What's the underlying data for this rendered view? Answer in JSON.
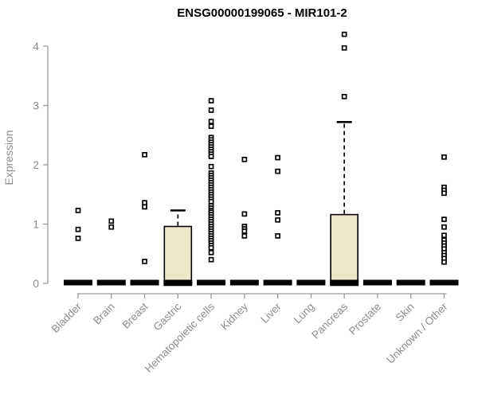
{
  "chart_data": {
    "type": "boxplot",
    "title": "ENSG00000199065 - MIR101-2",
    "ylabel": "Expression",
    "yticks": [
      0,
      1,
      2,
      3,
      4
    ],
    "ylim": [
      0,
      4.3
    ],
    "grid": false,
    "legend": "none",
    "categories": [
      "Bladder",
      "Brain",
      "Breast",
      "Gastric",
      "Hematopoietic cells",
      "Kidney",
      "Liver",
      "Lung",
      "Pancreas",
      "Prostate",
      "Skin",
      "Unknown / Other"
    ],
    "series": [
      {
        "category": "Bladder",
        "median": 0,
        "q1": 0,
        "q3": 0,
        "whisker_low": 0,
        "whisker_high": 0,
        "outliers": [
          1.23,
          0.91,
          0.76
        ]
      },
      {
        "category": "Brain",
        "median": 0,
        "q1": 0,
        "q3": 0,
        "whisker_low": 0,
        "whisker_high": 0,
        "outliers": [
          1.05,
          0.95
        ]
      },
      {
        "category": "Breast",
        "median": 0,
        "q1": 0,
        "q3": 0,
        "whisker_low": 0,
        "whisker_high": 0,
        "outliers": [
          2.17,
          1.36,
          1.29,
          0.37
        ]
      },
      {
        "category": "Gastric",
        "median": 0,
        "q1": 0,
        "q3": 0.96,
        "whisker_low": 0,
        "whisker_high": 1.23,
        "outliers": []
      },
      {
        "category": "Hematopoietic cells",
        "median": 0,
        "q1": 0,
        "q3": 0,
        "whisker_low": 0,
        "whisker_high": 0,
        "outliers": [
          3.08,
          2.92,
          2.73,
          2.65,
          2.46,
          2.42,
          2.38,
          2.34,
          2.3,
          2.26,
          2.22,
          2.18,
          2.14,
          1.97,
          1.86,
          1.82,
          1.78,
          1.74,
          1.7,
          1.66,
          1.62,
          1.58,
          1.54,
          1.5,
          1.46,
          1.42,
          1.38,
          1.31,
          1.27,
          1.23,
          1.2,
          1.16,
          1.12,
          1.08,
          1.04,
          1.0,
          0.96,
          0.92,
          0.88,
          0.84,
          0.8,
          0.76,
          0.72,
          0.68,
          0.64,
          0.6,
          0.52,
          0.4
        ]
      },
      {
        "category": "Kidney",
        "median": 0,
        "q1": 0,
        "q3": 0,
        "whisker_low": 0,
        "whisker_high": 0,
        "outliers": [
          2.09,
          1.17,
          0.96,
          0.92,
          0.88,
          0.8
        ]
      },
      {
        "category": "Liver",
        "median": 0,
        "q1": 0,
        "q3": 0,
        "whisker_low": 0,
        "whisker_high": 0,
        "outliers": [
          2.12,
          1.89,
          1.19,
          1.07,
          0.8
        ]
      },
      {
        "category": "Lung",
        "median": 0,
        "q1": 0,
        "q3": 0,
        "whisker_low": 0,
        "whisker_high": 0,
        "outliers": []
      },
      {
        "category": "Pancreas",
        "median": 0,
        "q1": 0,
        "q3": 1.16,
        "whisker_low": 0,
        "whisker_high": 2.72,
        "outliers": [
          4.2,
          3.97,
          3.15
        ]
      },
      {
        "category": "Prostate",
        "median": 0,
        "q1": 0,
        "q3": 0,
        "whisker_low": 0,
        "whisker_high": 0,
        "outliers": []
      },
      {
        "category": "Skin",
        "median": 0,
        "q1": 0,
        "q3": 0,
        "whisker_low": 0,
        "whisker_high": 0,
        "outliers": []
      },
      {
        "category": "Unknown / Other",
        "median": 0,
        "q1": 0,
        "q3": 0,
        "whisker_low": 0,
        "whisker_high": 0,
        "outliers": [
          2.13,
          1.62,
          1.57,
          1.52,
          1.08,
          0.95,
          0.81,
          0.73,
          0.68,
          0.63,
          0.58,
          0.52,
          0.47,
          0.42,
          0.36
        ]
      }
    ],
    "colors": {
      "box_fill": "#ede6cb",
      "box_border": "#000000",
      "median_bar": "#000000",
      "whisker": "#000000",
      "outlier_marker_stroke": "#000000",
      "outlier_marker_fill": "#ffffff",
      "axis": "#9a9a9a",
      "tick_label": "#8c8c8c",
      "title": "#000000",
      "background": "#ffffff"
    }
  }
}
